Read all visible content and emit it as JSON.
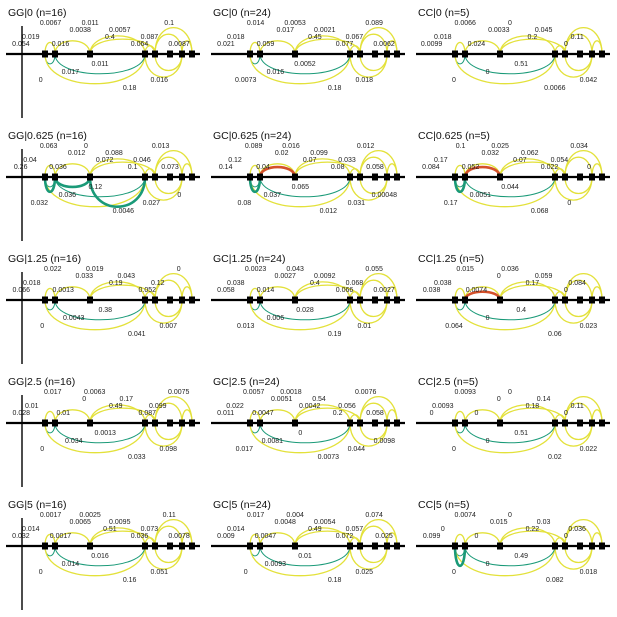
{
  "palette": {
    "yellow": "#e3e13a",
    "teal": "#1a9a78",
    "red": "#d4502a"
  },
  "panels": [
    {
      "title": "GG|0 (n=16)",
      "labels": [
        "0.054",
        "0.019",
        "0",
        "0.0067",
        "0.016",
        "0.017",
        "0.0038",
        "0.011",
        "0.011",
        "0.4",
        "0.0057",
        "0.18",
        "0.064",
        "0.087",
        "0.016",
        "0.1",
        "0.0087"
      ]
    },
    {
      "title": "GC|0 (n=24)",
      "labels": [
        "0.021",
        "0.018",
        "0.0073",
        "0.014",
        "0.059",
        "0.016",
        "0.017",
        "0.0053",
        "0.0052",
        "0.45",
        "0.0021",
        "0.18",
        "0.077",
        "0.067",
        "0.018",
        "0.089",
        "0.0062"
      ]
    },
    {
      "title": "CC|0 (n=5)",
      "labels": [
        "0.0099",
        "0.018",
        "0",
        "0.0066",
        "0.024",
        "0",
        "0.0033",
        "0",
        "0.51",
        "0.2",
        "0.045",
        "0.0066",
        "0",
        "0.11",
        "0.042"
      ]
    },
    {
      "title": "GG|0.625 (n=16)",
      "labels": [
        "0.26",
        "0.04",
        "0.032",
        "0.063",
        "0.036",
        "0.036",
        "0.012",
        "0",
        "0.12",
        "0.072",
        "0.088",
        "0.0046",
        "0.1",
        "0.046",
        "0.027",
        "0.013",
        "0.073",
        "0"
      ]
    },
    {
      "title": "GC|0.625 (n=24)",
      "labels": [
        "0.14",
        "0.12",
        "0.08",
        "0.089",
        "0.04",
        "0.037",
        "0.02",
        "0.016",
        "0.065",
        "0.07",
        "0.099",
        "0.012",
        "0.08",
        "0.033",
        "0.031",
        "0.012",
        "0.058",
        "0.00048"
      ]
    },
    {
      "title": "CC|0.625 (n=5)",
      "labels": [
        "0.084",
        "0.17",
        "0.17",
        "0.1",
        "0.052",
        "0.0051",
        "0.032",
        "0.025",
        "0.044",
        "0.07",
        "0.062",
        "0.068",
        "0.022",
        "0.054",
        "0",
        "0.034",
        "0"
      ]
    },
    {
      "title": "GG|1.25 (n=16)",
      "labels": [
        "0.066",
        "0.018",
        "0",
        "0.022",
        "0.0013",
        "0.0043",
        "0.033",
        "0.019",
        "0.38",
        "0.19",
        "0.043",
        "0.041",
        "0.052",
        "0.12",
        "0.007",
        "0"
      ]
    },
    {
      "title": "GC|1.25 (n=24)",
      "labels": [
        "0.058",
        "0.038",
        "0.013",
        "0.0023",
        "0.014",
        "0.006",
        "0.0027",
        "0.043",
        "0.028",
        "0.4",
        "0.0092",
        "0.19",
        "0.066",
        "0.068",
        "0.01",
        "0.055",
        "0.0027"
      ]
    },
    {
      "title": "CC|1.25 (n=5)",
      "labels": [
        "0.038",
        "0.038",
        "0.064",
        "0.015",
        "0.0074",
        "0",
        "0",
        "0.036",
        "0.4",
        "0.17",
        "0.059",
        "0.06",
        "0",
        "0.084",
        "0.023"
      ]
    },
    {
      "title": "GG|2.5 (n=16)",
      "labels": [
        "0.028",
        "0.01",
        "0",
        "0.017",
        "0.01",
        "0.034",
        "0",
        "0.0063",
        "0.0013",
        "0.49",
        "0.17",
        "0.033",
        "0.087",
        "0.099",
        "0.098",
        "0.0075"
      ]
    },
    {
      "title": "GC|2.5 (n=24)",
      "labels": [
        "0.011",
        "0.022",
        "0.017",
        "0.0057",
        "0.0047",
        "0.0081",
        "0.0051",
        "0.0018",
        "0",
        "0.0042",
        "0.54",
        "0.0073",
        "0.2",
        "0.056",
        "0.044",
        "0.0076",
        "0.058",
        "0.0098"
      ]
    },
    {
      "title": "CC|2.5 (n=5)",
      "labels": [
        "0",
        "0.0093",
        "0",
        "0.0093",
        "0",
        "0",
        "0",
        "0",
        "0.51",
        "0.18",
        "0.14",
        "0.02",
        "0",
        "0.11",
        "0.022"
      ]
    },
    {
      "title": "GG|5 (n=16)",
      "labels": [
        "0.032",
        "0.014",
        "0",
        "0.0017",
        "0.0017",
        "0.014",
        "0.0065",
        "0.0025",
        "0.016",
        "0.51",
        "0.0095",
        "0.16",
        "0.036",
        "0.073",
        "0.051",
        "0.11",
        "0.0078"
      ]
    },
    {
      "title": "GC|5 (n=24)",
      "labels": [
        "0.009",
        "0.014",
        "0",
        "0.017",
        "0.0047",
        "0.0093",
        "0.0048",
        "0.004",
        "0.01",
        "0.49",
        "0.0054",
        "0.18",
        "0.072",
        "0.057",
        "0.025",
        "0.074",
        "0.025"
      ]
    },
    {
      "title": "CC|5 (n=5)",
      "labels": [
        "0.099",
        "0",
        "0",
        "0.0074",
        "0",
        "0",
        "0.015",
        "0",
        "0.49",
        "0.22",
        "0.03",
        "0.082",
        "0",
        "0.036",
        "0.018"
      ]
    }
  ]
}
